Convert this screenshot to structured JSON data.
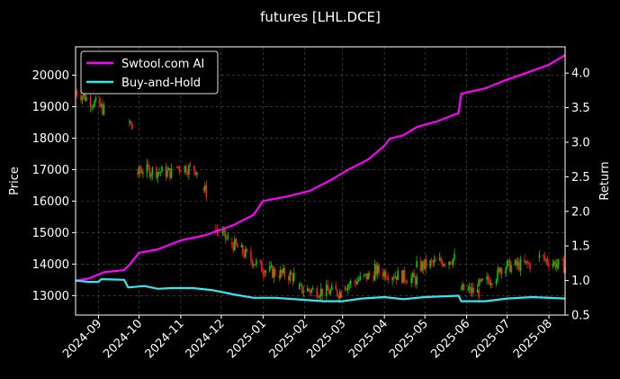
{
  "chart_data": {
    "type": "line",
    "title": "futures [LHL.DCE]",
    "ylabel_left": "Price",
    "ylabel_right": "Return",
    "x_range": [
      "2024-08-15",
      "2025-08-13"
    ],
    "x_ticks": [
      "2024-09",
      "2024-10",
      "2024-11",
      "2024-12",
      "2025-01",
      "2025-02",
      "2025-03",
      "2025-04",
      "2025-05",
      "2025-06",
      "2025-07",
      "2025-08"
    ],
    "y_left_range": [
      12380,
      20900
    ],
    "y_left_ticks": [
      "13000",
      "14000",
      "15000",
      "16000",
      "17000",
      "18000",
      "19000",
      "20000"
    ],
    "y_right_range": [
      0.5,
      4.38
    ],
    "y_right_ticks": [
      "0.5",
      "1.0",
      "1.5",
      "2.0",
      "2.5",
      "3.0",
      "3.5",
      "4.0"
    ],
    "grid": true,
    "legend_position": "top-left",
    "series": [
      {
        "name": "Swtool.com AI",
        "color": "#ff00ff",
        "axis": "right",
        "points": [
          [
            "2024-08-15",
            1.0
          ],
          [
            "2024-08-25",
            1.03
          ],
          [
            "2024-09-05",
            1.12
          ],
          [
            "2024-09-20",
            1.15
          ],
          [
            "2024-09-25",
            1.25
          ],
          [
            "2024-10-01",
            1.4
          ],
          [
            "2024-10-15",
            1.45
          ],
          [
            "2024-11-01",
            1.58
          ],
          [
            "2024-11-20",
            1.66
          ],
          [
            "2024-12-10",
            1.8
          ],
          [
            "2024-12-25",
            1.95
          ],
          [
            "2025-01-01",
            2.15
          ],
          [
            "2025-01-20",
            2.22
          ],
          [
            "2025-02-05",
            2.3
          ],
          [
            "2025-02-20",
            2.45
          ],
          [
            "2025-03-05",
            2.6
          ],
          [
            "2025-03-20",
            2.75
          ],
          [
            "2025-04-01",
            2.95
          ],
          [
            "2025-04-05",
            3.05
          ],
          [
            "2025-04-15",
            3.1
          ],
          [
            "2025-04-25",
            3.22
          ],
          [
            "2025-05-10",
            3.3
          ],
          [
            "2025-05-26",
            3.42
          ],
          [
            "2025-05-28",
            3.7
          ],
          [
            "2025-06-15",
            3.78
          ],
          [
            "2025-06-30",
            3.9
          ],
          [
            "2025-07-15",
            4.0
          ],
          [
            "2025-08-01",
            4.12
          ],
          [
            "2025-08-13",
            4.26
          ]
        ]
      },
      {
        "name": "Buy-and-Hold",
        "color": "#33e6f0",
        "axis": "right",
        "points": [
          [
            "2024-08-15",
            1.0
          ],
          [
            "2024-08-25",
            0.98
          ],
          [
            "2024-09-01",
            0.98
          ],
          [
            "2024-09-03",
            1.02
          ],
          [
            "2024-09-20",
            1.01
          ],
          [
            "2024-09-23",
            0.9
          ],
          [
            "2024-10-05",
            0.92
          ],
          [
            "2024-10-15",
            0.88
          ],
          [
            "2024-10-25",
            0.89
          ],
          [
            "2024-11-10",
            0.89
          ],
          [
            "2024-11-25",
            0.86
          ],
          [
            "2024-12-10",
            0.8
          ],
          [
            "2024-12-25",
            0.75
          ],
          [
            "2025-01-10",
            0.75
          ],
          [
            "2025-02-01",
            0.72
          ],
          [
            "2025-02-15",
            0.7
          ],
          [
            "2025-03-01",
            0.7
          ],
          [
            "2025-03-15",
            0.74
          ],
          [
            "2025-04-01",
            0.76
          ],
          [
            "2025-04-15",
            0.73
          ],
          [
            "2025-05-01",
            0.76
          ],
          [
            "2025-05-26",
            0.78
          ],
          [
            "2025-05-28",
            0.7
          ],
          [
            "2025-06-15",
            0.7
          ],
          [
            "2025-07-01",
            0.74
          ],
          [
            "2025-07-20",
            0.76
          ],
          [
            "2025-08-13",
            0.74
          ]
        ]
      }
    ],
    "candles": {
      "axis": "left",
      "up_color": "#00cc00",
      "down_color": "#ff1a1a",
      "segments": [
        {
          "from": "2024-08-15",
          "to": "2024-09-05",
          "level_from": 19500,
          "level_to": 18900
        },
        {
          "from": "2024-09-24",
          "to": "2024-09-26",
          "level_from": 18500,
          "level_to": 18300
        },
        {
          "from": "2024-09-28",
          "to": "2024-10-02",
          "level_from": 16900,
          "level_to": 16900
        },
        {
          "from": "2024-10-02",
          "to": "2024-10-25",
          "level_from": 17000,
          "level_to": 16900
        },
        {
          "from": "2024-10-29",
          "to": "2024-11-13",
          "level_from": 17100,
          "level_to": 17000
        },
        {
          "from": "2024-11-17",
          "to": "2024-11-20",
          "level_from": 16400,
          "level_to": 16300
        },
        {
          "from": "2024-11-27",
          "to": "2024-12-08",
          "level_from": 15100,
          "level_to": 14700
        },
        {
          "from": "2024-12-08",
          "to": "2025-01-02",
          "level_from": 14700,
          "level_to": 13800
        },
        {
          "from": "2025-01-02",
          "to": "2025-01-25",
          "level_from": 13800,
          "level_to": 13600
        },
        {
          "from": "2025-01-28",
          "to": "2025-02-28",
          "level_from": 13200,
          "level_to": 13100
        },
        {
          "from": "2025-03-01",
          "to": "2025-03-25",
          "level_from": 13300,
          "level_to": 13700
        },
        {
          "from": "2025-03-25",
          "to": "2025-04-25",
          "level_from": 13800,
          "level_to": 13500
        },
        {
          "from": "2025-04-25",
          "to": "2025-05-25",
          "level_from": 13900,
          "level_to": 14200
        },
        {
          "from": "2025-05-28",
          "to": "2025-06-10",
          "level_from": 13200,
          "level_to": 13100
        },
        {
          "from": "2025-06-10",
          "to": "2025-06-25",
          "level_from": 13300,
          "level_to": 13700
        },
        {
          "from": "2025-06-25",
          "to": "2025-07-20",
          "level_from": 13900,
          "level_to": 14000
        },
        {
          "from": "2025-07-25",
          "to": "2025-08-13",
          "level_from": 14200,
          "level_to": 13900
        }
      ]
    }
  }
}
